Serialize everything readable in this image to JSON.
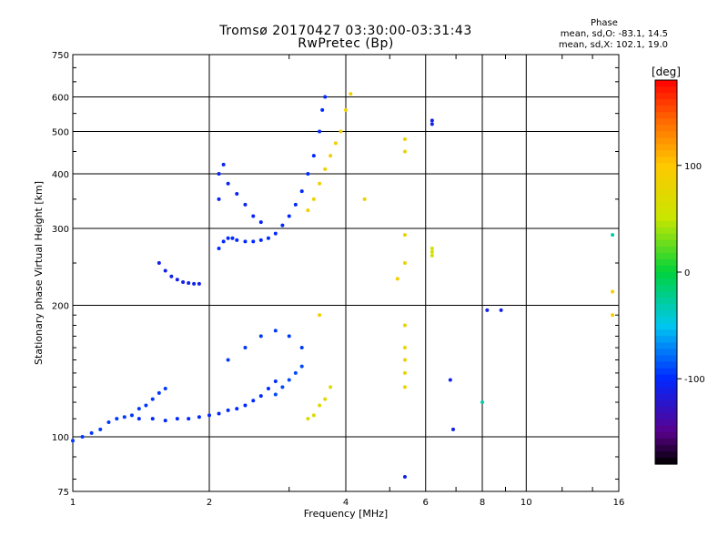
{
  "chart_data": {
    "type": "scatter",
    "title": "Tromsø 20170427 03:30:00-03:31:43",
    "subtitle": "RwPretec (Bp)",
    "xlabel": "Frequency [MHz]",
    "ylabel": "Stationary phase Virtual Height [km]",
    "xscale": "log",
    "yscale": "log",
    "xlim": [
      1,
      16
    ],
    "ylim": [
      75,
      750
    ],
    "x_ticks": [
      "1",
      "2",
      "4",
      "6",
      "8",
      "10",
      "16"
    ],
    "y_ticks": [
      "75",
      "100",
      "200",
      "300",
      "400",
      "500",
      "600",
      "750"
    ],
    "phase_info": {
      "header": "Phase",
      "line_o": "mean, sd,O: -83.1, 14.5",
      "line_x": "mean, sd,X: 102.1, 19.0"
    },
    "colorbar": {
      "label": "[deg]",
      "range": [
        -180,
        180
      ],
      "ticks": [
        "100",
        "0",
        "-100"
      ]
    },
    "series": [
      {
        "phase": -95,
        "points": [
          [
            1.0,
            98
          ],
          [
            1.05,
            100
          ],
          [
            1.1,
            102
          ],
          [
            1.15,
            104
          ],
          [
            1.2,
            108
          ],
          [
            1.25,
            110
          ],
          [
            1.3,
            111
          ],
          [
            1.35,
            112
          ],
          [
            1.4,
            116
          ],
          [
            1.45,
            118
          ],
          [
            1.5,
            122
          ],
          [
            1.55,
            126
          ],
          [
            1.6,
            129
          ]
        ]
      },
      {
        "phase": -100,
        "points": [
          [
            1.4,
            110
          ],
          [
            1.5,
            110
          ],
          [
            1.6,
            109
          ],
          [
            1.7,
            110
          ],
          [
            1.8,
            110
          ],
          [
            1.9,
            111
          ],
          [
            2.0,
            112
          ],
          [
            2.1,
            113
          ],
          [
            2.2,
            115
          ],
          [
            2.3,
            116
          ],
          [
            2.4,
            118
          ],
          [
            2.5,
            121
          ],
          [
            2.6,
            124
          ],
          [
            2.7,
            129
          ],
          [
            2.8,
            134
          ]
        ]
      },
      {
        "phase": -110,
        "points": [
          [
            1.55,
            250
          ],
          [
            1.6,
            240
          ],
          [
            1.65,
            233
          ],
          [
            1.7,
            229
          ],
          [
            1.75,
            226
          ],
          [
            1.8,
            225
          ],
          [
            1.85,
            224
          ],
          [
            1.9,
            224
          ]
        ]
      },
      {
        "phase": -100,
        "points": [
          [
            2.1,
            270
          ],
          [
            2.15,
            280
          ],
          [
            2.2,
            285
          ],
          [
            2.25,
            285
          ],
          [
            2.3,
            282
          ],
          [
            2.4,
            280
          ],
          [
            2.5,
            280
          ],
          [
            2.6,
            282
          ],
          [
            2.7,
            285
          ],
          [
            2.8,
            292
          ],
          [
            2.9,
            305
          ],
          [
            3.0,
            320
          ],
          [
            3.1,
            340
          ],
          [
            3.2,
            365
          ],
          [
            3.3,
            400
          ],
          [
            3.4,
            440
          ],
          [
            3.5,
            500
          ],
          [
            3.55,
            560
          ],
          [
            3.6,
            600
          ]
        ]
      },
      {
        "phase": -105,
        "points": [
          [
            2.1,
            350
          ],
          [
            2.1,
            400
          ],
          [
            2.15,
            420
          ],
          [
            2.2,
            380
          ],
          [
            2.3,
            360
          ],
          [
            2.4,
            340
          ],
          [
            2.5,
            320
          ],
          [
            2.6,
            310
          ]
        ]
      },
      {
        "phase": -95,
        "points": [
          [
            2.2,
            150
          ],
          [
            2.4,
            160
          ],
          [
            2.6,
            170
          ],
          [
            2.8,
            175
          ],
          [
            3.0,
            170
          ],
          [
            3.2,
            160
          ]
        ]
      },
      {
        "phase": -90,
        "points": [
          [
            2.8,
            125
          ],
          [
            2.9,
            130
          ],
          [
            3.0,
            135
          ],
          [
            3.1,
            140
          ],
          [
            3.2,
            145
          ]
        ]
      },
      {
        "phase": 70,
        "points": [
          [
            3.3,
            110
          ],
          [
            3.4,
            112
          ],
          [
            3.5,
            118
          ],
          [
            3.6,
            122
          ],
          [
            3.7,
            130
          ]
        ]
      },
      {
        "phase": 85,
        "points": [
          [
            3.3,
            330
          ],
          [
            3.4,
            350
          ],
          [
            3.5,
            380
          ],
          [
            3.6,
            410
          ],
          [
            3.7,
            440
          ],
          [
            3.8,
            470
          ],
          [
            3.9,
            500
          ],
          [
            4.0,
            560
          ],
          [
            4.1,
            610
          ]
        ]
      },
      {
        "phase": 80,
        "points": [
          [
            5.4,
            480
          ],
          [
            5.4,
            450
          ],
          [
            5.4,
            290
          ],
          [
            5.4,
            250
          ],
          [
            5.4,
            180
          ],
          [
            5.4,
            160
          ],
          [
            5.4,
            150
          ],
          [
            5.4,
            140
          ],
          [
            5.4,
            130
          ]
        ]
      },
      {
        "phase": 60,
        "points": [
          [
            6.2,
            270
          ],
          [
            6.2,
            265
          ],
          [
            6.2,
            260
          ]
        ]
      },
      {
        "phase": -110,
        "points": [
          [
            6.2,
            530
          ],
          [
            6.2,
            520
          ],
          [
            8.2,
            195
          ],
          [
            8.8,
            195
          ],
          [
            6.8,
            135
          ],
          [
            6.9,
            104
          ],
          [
            5.4,
            81
          ]
        ]
      },
      {
        "phase": -30,
        "points": [
          [
            8.0,
            120
          ],
          [
            15.5,
            290
          ]
        ]
      },
      {
        "phase": 90,
        "points": [
          [
            15.5,
            215
          ],
          [
            15.5,
            190
          ],
          [
            4.4,
            350
          ],
          [
            5.2,
            230
          ],
          [
            3.5,
            190
          ]
        ]
      }
    ]
  }
}
